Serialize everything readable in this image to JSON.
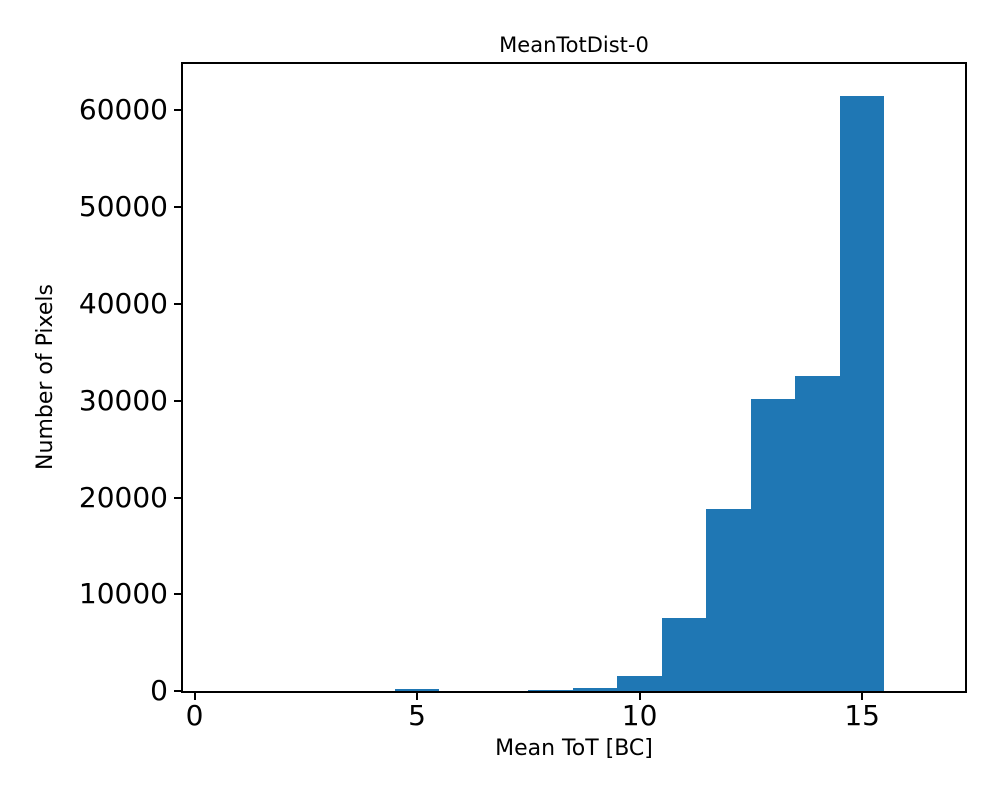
{
  "figure": {
    "background": "#ffffff"
  },
  "chart_data": {
    "type": "bar",
    "title": "MeanTotDist-0",
    "xlabel": "Mean ToT [BC]",
    "ylabel": "Number of Pixels",
    "bar_color": "#1f77b4",
    "bin_width": 1.0,
    "bin_centers": [
      5,
      8,
      9,
      10,
      11,
      12,
      13,
      14,
      15
    ],
    "values": [
      200,
      150,
      300,
      1600,
      7600,
      18800,
      30200,
      32600,
      61500
    ],
    "xlim": [
      -0.26,
      17.31
    ],
    "ylim": [
      0,
      64800
    ],
    "xticks": [
      0,
      5,
      10,
      15
    ],
    "xtick_labels": [
      "0",
      "5",
      "10",
      "15"
    ],
    "yticks": [
      0,
      10000,
      20000,
      30000,
      40000,
      50000,
      60000
    ],
    "ytick_labels": [
      "0",
      "10000",
      "20000",
      "30000",
      "40000",
      "50000",
      "60000"
    ],
    "grid": false,
    "legend": null
  }
}
